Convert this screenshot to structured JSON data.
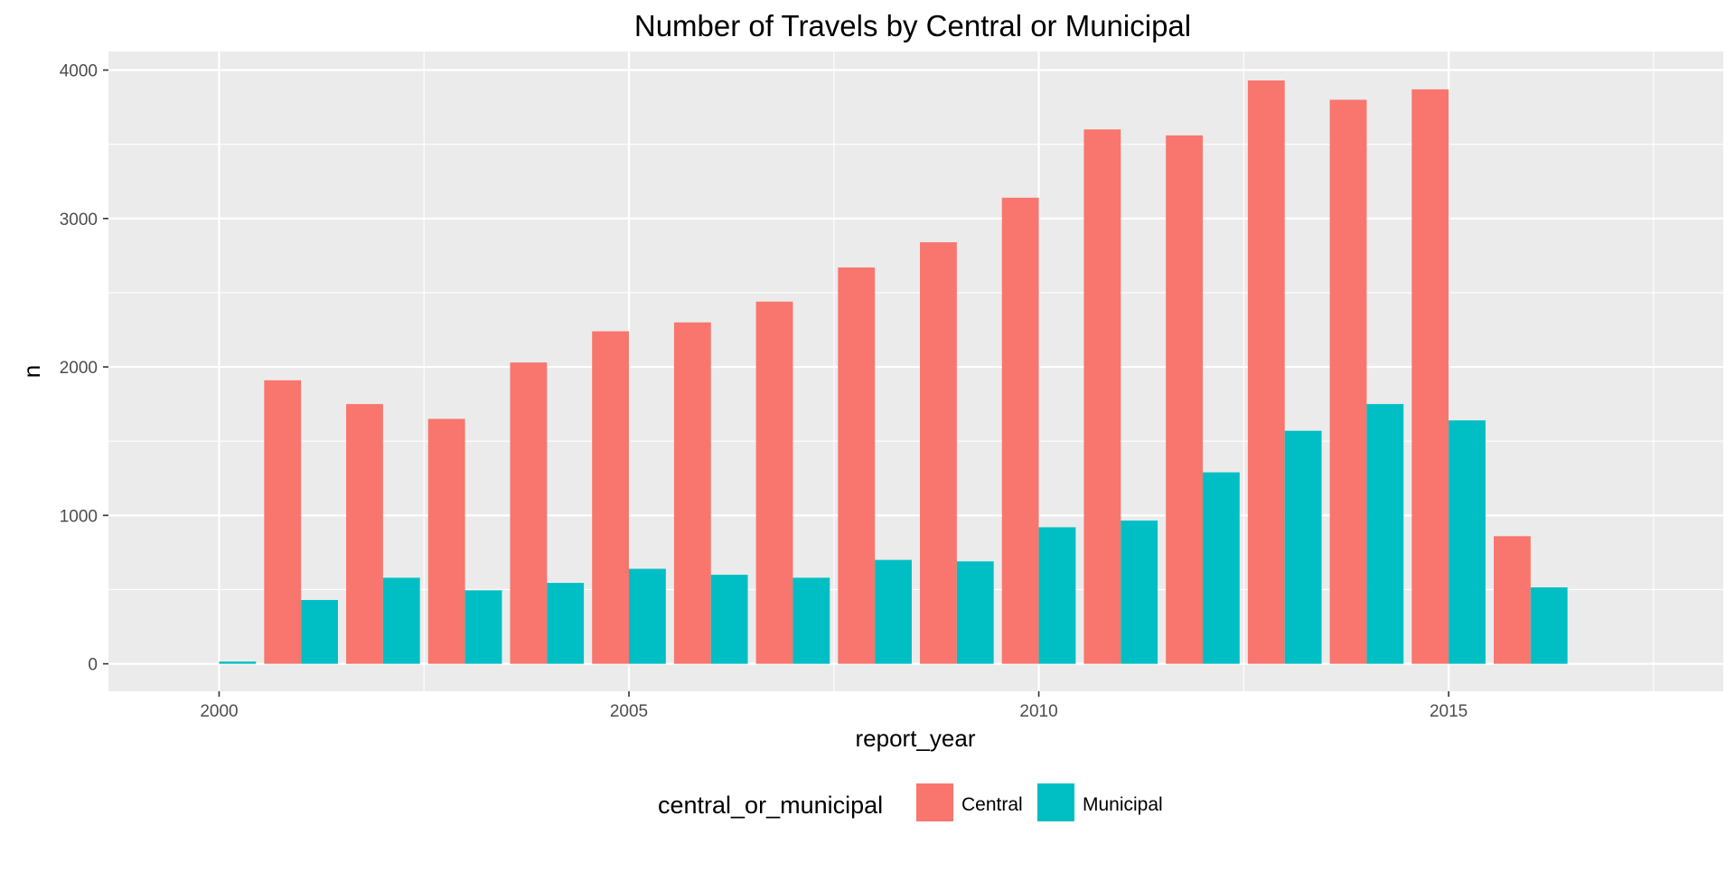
{
  "chart_data": {
    "type": "bar",
    "title": "Number of Travels by Central or Municipal",
    "xlabel": "report_year",
    "ylabel": "n",
    "x_ticks": [
      "2000",
      "2005",
      "2010",
      "2015"
    ],
    "y_ticks": [
      "0",
      "1000",
      "2000",
      "3000",
      "4000"
    ],
    "xlim": [
      1998.65,
      2018.35
    ],
    "ylim": [
      -185,
      4125
    ],
    "grid": true,
    "legend_position": "bottom",
    "legend_title": "central_or_municipal",
    "colors": {
      "Central": "#F8766D",
      "Municipal": "#00BFC4",
      "panel": "#EBEBEB",
      "grid": "#FFFFFF"
    },
    "categories": [
      2000,
      2001,
      2002,
      2003,
      2004,
      2005,
      2006,
      2007,
      2008,
      2009,
      2010,
      2011,
      2012,
      2013,
      2014,
      2015,
      2016,
      2017
    ],
    "series": [
      {
        "name": "Central",
        "values": [
          null,
          1910,
          1750,
          1650,
          2030,
          2240,
          2300,
          2440,
          2670,
          2840,
          3140,
          3600,
          3560,
          3930,
          3800,
          3870,
          860,
          null
        ]
      },
      {
        "name": "Municipal",
        "values": [
          15,
          430,
          580,
          495,
          545,
          640,
          600,
          580,
          700,
          690,
          920,
          965,
          1290,
          1570,
          1750,
          1640,
          515,
          null
        ]
      }
    ]
  }
}
